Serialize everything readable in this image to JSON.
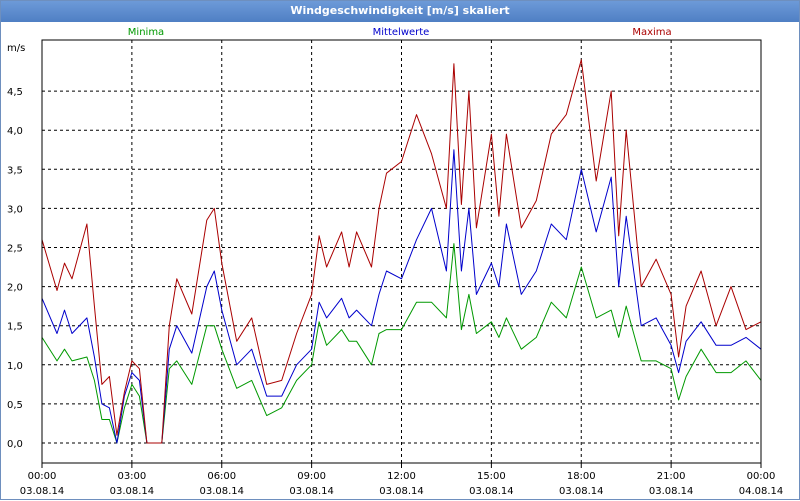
{
  "window": {
    "title": "Windgeschwindigkeit [m/s] skaliert"
  },
  "chart_data": {
    "type": "line",
    "title": "Windgeschwindigkeit [m/s] skaliert",
    "ylabel": "m/s",
    "xlabel": "",
    "ylim": [
      -0.25,
      5.25
    ],
    "xlim": [
      "03.08.14 00:00",
      "04.08.14 00:00"
    ],
    "grid": true,
    "legend_placement": "top",
    "yticks": [
      "0,0",
      "0,5",
      "1,0",
      "1,5",
      "2,0",
      "2,5",
      "3,0",
      "3,5",
      "4,0",
      "4,5"
    ],
    "xticks": [
      {
        "time": "00:00",
        "date": "03.08.14"
      },
      {
        "time": "03:00",
        "date": "03.08.14"
      },
      {
        "time": "06:00",
        "date": "03.08.14"
      },
      {
        "time": "09:00",
        "date": "03.08.14"
      },
      {
        "time": "12:00",
        "date": "03.08.14"
      },
      {
        "time": "15:00",
        "date": "03.08.14"
      },
      {
        "time": "18:00",
        "date": "03.08.14"
      },
      {
        "time": "21:00",
        "date": "03.08.14"
      },
      {
        "time": "00:00",
        "date": "04.08.14"
      }
    ],
    "series": [
      {
        "name": "Minima",
        "color": "#009900",
        "x": [
          0,
          0.5,
          0.75,
          1,
          1.5,
          1.75,
          2,
          2.25,
          2.5,
          2.75,
          3,
          3.25,
          3.5,
          4,
          4.25,
          4.5,
          5,
          5.5,
          5.75,
          6,
          6.5,
          7,
          7.5,
          8,
          8.5,
          9,
          9.25,
          9.5,
          10,
          10.25,
          10.5,
          11,
          11.25,
          11.5,
          12,
          12.5,
          13,
          13.5,
          13.75,
          14,
          14.25,
          14.5,
          15,
          15.25,
          15.5,
          16,
          16.5,
          17,
          17.5,
          18,
          18.5,
          19,
          19.25,
          19.5,
          20,
          20.5,
          21,
          21.25,
          21.5,
          22,
          22.5,
          23,
          23.5,
          24
        ],
        "y": [
          1.35,
          1.05,
          1.2,
          1.05,
          1.1,
          0.8,
          0.3,
          0.3,
          0,
          0.45,
          0.75,
          0.6,
          0,
          0,
          0.95,
          1.05,
          0.75,
          1.5,
          1.5,
          1.2,
          0.7,
          0.8,
          0.35,
          0.45,
          0.8,
          1.0,
          1.55,
          1.25,
          1.45,
          1.3,
          1.3,
          1.0,
          1.4,
          1.45,
          1.45,
          1.8,
          1.8,
          1.6,
          2.55,
          1.45,
          1.9,
          1.4,
          1.55,
          1.35,
          1.6,
          1.2,
          1.35,
          1.8,
          1.6,
          2.25,
          1.6,
          1.7,
          1.35,
          1.75,
          1.05,
          1.05,
          0.95,
          0.55,
          0.85,
          1.2,
          0.9,
          0.9,
          1.05,
          0.8
        ]
      },
      {
        "name": "Mittelwerte",
        "color": "#0000cc",
        "x": [
          0,
          0.5,
          0.75,
          1,
          1.5,
          1.75,
          2,
          2.25,
          2.5,
          2.75,
          3,
          3.25,
          3.5,
          4,
          4.25,
          4.5,
          5,
          5.5,
          5.75,
          6,
          6.5,
          7,
          7.5,
          8,
          8.5,
          9,
          9.25,
          9.5,
          10,
          10.25,
          10.5,
          11,
          11.25,
          11.5,
          12,
          12.5,
          13,
          13.5,
          13.75,
          14,
          14.25,
          14.5,
          15,
          15.25,
          15.5,
          16,
          16.5,
          17,
          17.5,
          18,
          18.5,
          19,
          19.25,
          19.5,
          20,
          20.5,
          21,
          21.25,
          21.5,
          22,
          22.5,
          23,
          23.5,
          24
        ],
        "y": [
          1.85,
          1.4,
          1.7,
          1.4,
          1.6,
          1.1,
          0.5,
          0.45,
          0,
          0.6,
          0.9,
          0.8,
          0,
          0,
          1.2,
          1.5,
          1.15,
          2.0,
          2.2,
          1.7,
          1.0,
          1.2,
          0.6,
          0.6,
          1.0,
          1.2,
          1.8,
          1.6,
          1.85,
          1.6,
          1.7,
          1.5,
          1.9,
          2.2,
          2.1,
          2.6,
          3.0,
          2.2,
          3.75,
          2.2,
          3.0,
          1.9,
          2.3,
          2.0,
          2.8,
          1.9,
          2.2,
          2.8,
          2.6,
          3.5,
          2.7,
          3.4,
          2.0,
          2.9,
          1.5,
          1.6,
          1.25,
          0.9,
          1.3,
          1.55,
          1.25,
          1.25,
          1.35,
          1.2
        ]
      },
      {
        "name": "Maxima",
        "color": "#aa0000",
        "x": [
          0,
          0.5,
          0.75,
          1,
          1.5,
          1.75,
          2,
          2.25,
          2.5,
          2.75,
          3,
          3.25,
          3.5,
          4,
          4.25,
          4.5,
          5,
          5.5,
          5.75,
          6,
          6.5,
          7,
          7.5,
          8,
          8.5,
          9,
          9.25,
          9.5,
          10,
          10.25,
          10.5,
          11,
          11.25,
          11.5,
          12,
          12.5,
          13,
          13.5,
          13.75,
          14,
          14.25,
          14.5,
          15,
          15.25,
          15.5,
          16,
          16.5,
          17,
          17.5,
          18,
          18.5,
          19,
          19.25,
          19.5,
          20,
          20.5,
          21,
          21.25,
          21.5,
          22,
          22.5,
          23,
          23.5,
          24
        ],
        "y": [
          2.6,
          1.95,
          2.3,
          2.1,
          2.8,
          1.75,
          0.75,
          0.85,
          0.1,
          0.65,
          1.05,
          0.95,
          0,
          0,
          1.5,
          2.1,
          1.65,
          2.85,
          3.0,
          2.3,
          1.3,
          1.6,
          0.75,
          0.8,
          1.4,
          1.9,
          2.65,
          2.25,
          2.7,
          2.25,
          2.7,
          2.25,
          3.0,
          3.45,
          3.6,
          4.2,
          3.7,
          3.0,
          4.85,
          3.05,
          4.5,
          2.75,
          3.95,
          2.9,
          3.95,
          2.75,
          3.1,
          3.95,
          4.2,
          4.9,
          3.35,
          4.5,
          2.65,
          4.0,
          2.0,
          2.35,
          1.9,
          1.1,
          1.75,
          2.2,
          1.5,
          2.0,
          1.45,
          1.55
        ]
      }
    ]
  }
}
